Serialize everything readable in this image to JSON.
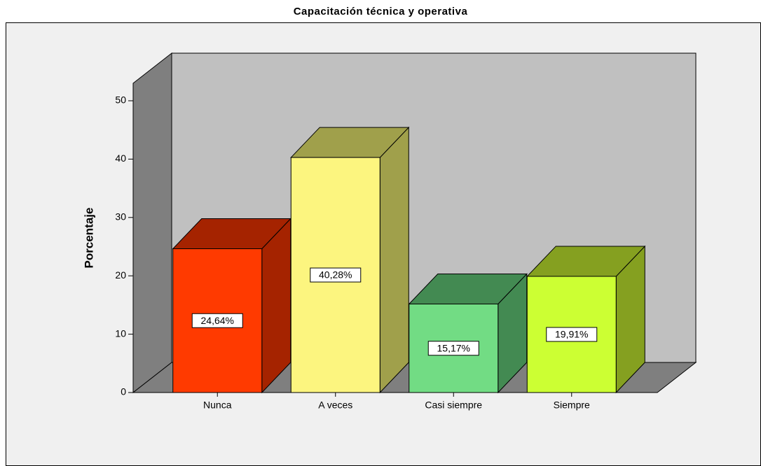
{
  "chart_data": {
    "type": "bar3d",
    "title": "Capacitación técnica y operativa",
    "y_label": "Porcentaje",
    "categories": [
      "Nunca",
      "A veces",
      "Casi siempre",
      "Siempre"
    ],
    "values": [
      24.64,
      40.28,
      15.17,
      19.91
    ],
    "value_labels": [
      "24,64%",
      "40,28%",
      "15,17%",
      "19,91%"
    ],
    "colors": [
      "#ff3a00",
      "#fcf57f",
      "#72dc84",
      "#ccff33"
    ],
    "shade_colors": [
      "#a52300",
      "#a0a04b",
      "#438a52",
      "#85a020"
    ],
    "ylim": [
      0,
      50
    ],
    "yticks": [
      0,
      10,
      20,
      30,
      40,
      50
    ]
  }
}
